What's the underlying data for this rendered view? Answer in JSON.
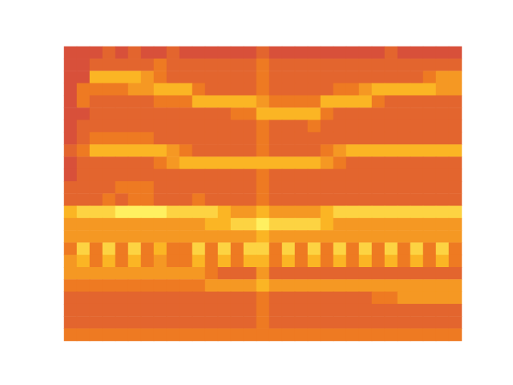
{
  "chart_data": {
    "type": "heatmap",
    "tick_labels": false,
    "color_range": [
      0,
      10
    ],
    "cells": [
      [
        4,
        4,
        4,
        5,
        4,
        5,
        4,
        4,
        5,
        4,
        4,
        4,
        4,
        4,
        4,
        5,
        4,
        4,
        4,
        4,
        4,
        4,
        4,
        4,
        4,
        5,
        4,
        4,
        4,
        4,
        4
      ],
      [
        4,
        4,
        5,
        5,
        5,
        5,
        5,
        6,
        5,
        5,
        5,
        5,
        5,
        5,
        5,
        6,
        5,
        5,
        5,
        5,
        5,
        5,
        5,
        5,
        5,
        5,
        5,
        5,
        5,
        5,
        5
      ],
      [
        4,
        4,
        8,
        8,
        8,
        8,
        7,
        6,
        5,
        5,
        5,
        5,
        5,
        5,
        5,
        6,
        5,
        5,
        5,
        5,
        5,
        5,
        5,
        5,
        5,
        5,
        5,
        5,
        6,
        7,
        7
      ],
      [
        4,
        6,
        6,
        6,
        6,
        7,
        7,
        8,
        8,
        8,
        6,
        5,
        5,
        5,
        5,
        6,
        5,
        5,
        5,
        5,
        5,
        6,
        6,
        7,
        8,
        8,
        8,
        8,
        8,
        7,
        7
      ],
      [
        4,
        6,
        5,
        5,
        5,
        5,
        5,
        6,
        6,
        6,
        8,
        8,
        8,
        8,
        8,
        7,
        6,
        6,
        6,
        6,
        8,
        8,
        8,
        8,
        6,
        5,
        5,
        5,
        5,
        5,
        5
      ],
      [
        4,
        4,
        5,
        5,
        5,
        5,
        5,
        5,
        5,
        5,
        5,
        5,
        5,
        6,
        6,
        8,
        8,
        8,
        8,
        8,
        6,
        5,
        5,
        5,
        5,
        5,
        5,
        5,
        5,
        5,
        5
      ],
      [
        4,
        5,
        5,
        5,
        5,
        5,
        5,
        5,
        5,
        5,
        5,
        5,
        5,
        5,
        5,
        6,
        5,
        5,
        5,
        6,
        5,
        5,
        5,
        5,
        5,
        5,
        5,
        5,
        5,
        5,
        5
      ],
      [
        4,
        5,
        6,
        6,
        6,
        6,
        6,
        5,
        5,
        5,
        5,
        5,
        5,
        5,
        5,
        6,
        5,
        5,
        5,
        5,
        5,
        5,
        5,
        5,
        5,
        5,
        5,
        5,
        5,
        5,
        5
      ],
      [
        5,
        6,
        8,
        8,
        8,
        8,
        8,
        8,
        7,
        6,
        5,
        5,
        5,
        5,
        5,
        6,
        5,
        5,
        5,
        5,
        6,
        7,
        8,
        8,
        8,
        8,
        8,
        8,
        8,
        8,
        8
      ],
      [
        4,
        5,
        5,
        5,
        5,
        5,
        5,
        6,
        7,
        8,
        8,
        8,
        8,
        8,
        8,
        8,
        8,
        8,
        8,
        8,
        7,
        6,
        5,
        5,
        5,
        5,
        5,
        5,
        5,
        5,
        5
      ],
      [
        4,
        5,
        5,
        5,
        5,
        5,
        5,
        5,
        5,
        5,
        5,
        5,
        5,
        5,
        5,
        6,
        5,
        5,
        5,
        5,
        5,
        5,
        5,
        5,
        5,
        5,
        5,
        5,
        5,
        5,
        5
      ],
      [
        5,
        5,
        5,
        5,
        6,
        6,
        6,
        5,
        5,
        5,
        5,
        5,
        5,
        5,
        5,
        6,
        5,
        5,
        5,
        5,
        5,
        5,
        5,
        5,
        5,
        5,
        5,
        5,
        5,
        5,
        5
      ],
      [
        5,
        5,
        5,
        6,
        5,
        6,
        6,
        5,
        5,
        5,
        6,
        5,
        5,
        5,
        5,
        6,
        5,
        5,
        5,
        5,
        5,
        5,
        5,
        5,
        5,
        5,
        5,
        5,
        5,
        5,
        5
      ],
      [
        8,
        9,
        9,
        9,
        10,
        10,
        10,
        10,
        9,
        9,
        9,
        9,
        8,
        7,
        7,
        8,
        7,
        7,
        7,
        7,
        8,
        9,
        9,
        9,
        9,
        9,
        9,
        9,
        9,
        9,
        9
      ],
      [
        7,
        7,
        7,
        7,
        7,
        7,
        7,
        7,
        7,
        7,
        7,
        8,
        8,
        9,
        9,
        10,
        9,
        9,
        9,
        9,
        8,
        7,
        7,
        7,
        7,
        7,
        7,
        7,
        7,
        7,
        7
      ],
      [
        7,
        7,
        7,
        7,
        7,
        7,
        7,
        7,
        7,
        7,
        7,
        7,
        7,
        7,
        7,
        8,
        7,
        7,
        7,
        7,
        7,
        7,
        7,
        7,
        7,
        7,
        7,
        7,
        7,
        7,
        7
      ],
      [
        6,
        9,
        6,
        9,
        6,
        9,
        6,
        8,
        6,
        6,
        9,
        6,
        9,
        6,
        9,
        9,
        6,
        9,
        6,
        9,
        6,
        9,
        6,
        9,
        6,
        9,
        6,
        9,
        6,
        9,
        6
      ],
      [
        7,
        8,
        6,
        8,
        6,
        8,
        6,
        7,
        6,
        6,
        8,
        6,
        8,
        6,
        8,
        8,
        6,
        8,
        6,
        8,
        6,
        8,
        6,
        8,
        6,
        8,
        6,
        8,
        6,
        8,
        6
      ],
      [
        7,
        7,
        7,
        7,
        7,
        7,
        7,
        7,
        7,
        7,
        7,
        6,
        5,
        5,
        5,
        7,
        5,
        5,
        5,
        5,
        5,
        5,
        5,
        5,
        5,
        5,
        5,
        5,
        5,
        5,
        5
      ],
      [
        6,
        6,
        6,
        6,
        6,
        6,
        6,
        6,
        6,
        6,
        6,
        7,
        7,
        7,
        7,
        8,
        7,
        7,
        7,
        7,
        7,
        7,
        7,
        7,
        7,
        7,
        7,
        7,
        7,
        7,
        7
      ],
      [
        5,
        5,
        5,
        5,
        5,
        5,
        5,
        5,
        5,
        5,
        5,
        5,
        5,
        5,
        5,
        6,
        5,
        5,
        5,
        5,
        5,
        5,
        5,
        5,
        6,
        6,
        7,
        7,
        7,
        7,
        7
      ],
      [
        5,
        5,
        5,
        5,
        5,
        5,
        5,
        5,
        5,
        5,
        5,
        5,
        5,
        5,
        5,
        6,
        5,
        5,
        5,
        5,
        5,
        5,
        5,
        5,
        5,
        5,
        5,
        5,
        5,
        5,
        5
      ],
      [
        5,
        5,
        5,
        5,
        5,
        5,
        5,
        5,
        5,
        5,
        5,
        5,
        5,
        5,
        5,
        6,
        5,
        5,
        5,
        5,
        5,
        5,
        5,
        5,
        5,
        5,
        5,
        5,
        5,
        5,
        5
      ],
      [
        6,
        6,
        6,
        6,
        6,
        6,
        6,
        6,
        6,
        6,
        6,
        6,
        6,
        6,
        6,
        6,
        6,
        6,
        6,
        6,
        6,
        6,
        6,
        6,
        6,
        6,
        6,
        6,
        6,
        6,
        6
      ]
    ]
  }
}
